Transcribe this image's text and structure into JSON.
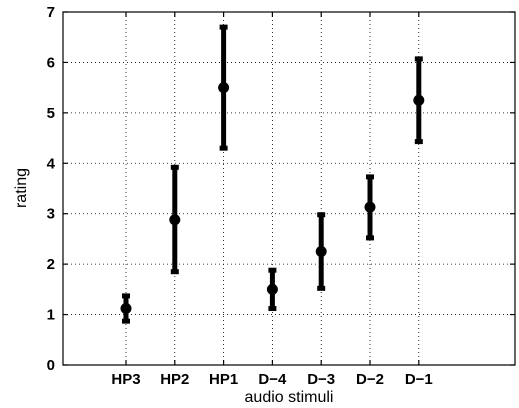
{
  "chart_data": {
    "type": "scatter",
    "title": "",
    "xlabel": "audio stimuli",
    "ylabel": "rating",
    "categories": [
      "HP3",
      "HP2",
      "HP1",
      "D−4",
      "D−3",
      "D−2",
      "D−1"
    ],
    "series": [
      {
        "mean": [
          1.12,
          2.88,
          5.5,
          1.5,
          2.25,
          3.13,
          5.25
        ],
        "lower": [
          0.87,
          1.85,
          4.3,
          1.12,
          1.52,
          2.52,
          4.43
        ],
        "upper": [
          1.37,
          3.92,
          6.7,
          1.88,
          2.98,
          3.73,
          6.07
        ]
      }
    ],
    "ylim": [
      0,
      7
    ],
    "yticks": [
      0,
      1,
      2,
      3,
      4,
      5,
      6,
      7
    ],
    "grid": true,
    "error_bars": true
  }
}
